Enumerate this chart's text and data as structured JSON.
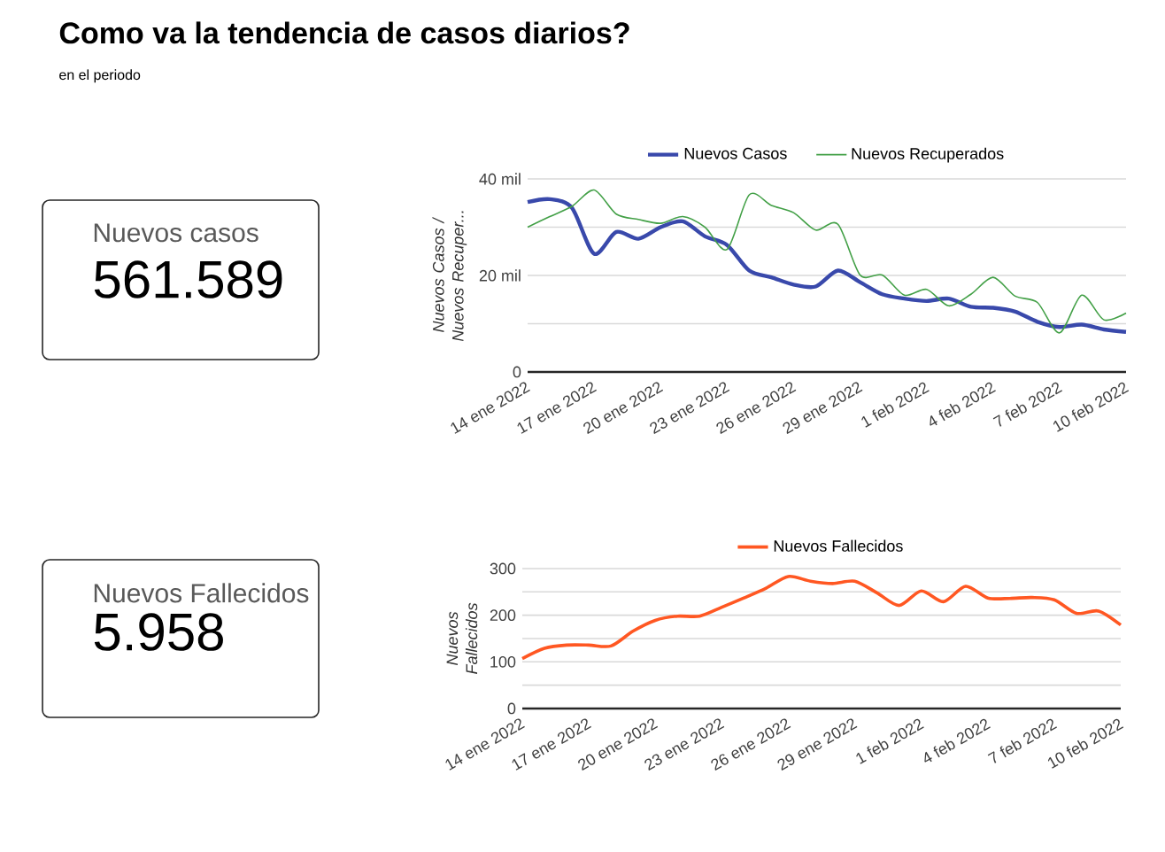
{
  "chart_data": [
    {
      "type": "other",
      "title": "Como va la tendencia de casos diarios?",
      "subtitle": "en el periodo"
    },
    {
      "type": "other",
      "title": "Nuevos casos",
      "annotations": [
        "561.589"
      ]
    },
    {
      "type": "line",
      "categories": [
        "14 ene 2022",
        null,
        null,
        "17 ene 2022",
        null,
        null,
        "20 ene 2022",
        null,
        null,
        "23 ene 2022",
        null,
        null,
        "26 ene 2022",
        null,
        null,
        "29 ene 2022",
        null,
        null,
        "1 feb 2022",
        null,
        null,
        "4 feb 2022",
        null,
        null,
        "7 feb 2022",
        null,
        null,
        "10 feb 2022"
      ],
      "series": [
        {
          "name": "Nuevos Casos",
          "color": "#3949ab",
          "values": [
            35.2,
            35.8,
            34.0,
            24.5,
            29.0,
            27.6,
            30.0,
            31.2,
            28.1,
            26.3,
            21.0,
            19.6,
            18.1,
            17.7,
            21.0,
            18.6,
            16.1,
            15.2,
            14.7,
            15.2,
            13.5,
            13.3,
            12.5,
            10.4,
            9.3,
            9.8,
            8.8,
            8.3
          ]
        },
        {
          "name": "Nuevos Recuperados",
          "color": "#43a047",
          "values": [
            30.0,
            32.2,
            34.3,
            37.7,
            32.7,
            31.6,
            30.8,
            32.2,
            30.0,
            25.4,
            36.7,
            34.5,
            33.0,
            29.4,
            30.6,
            20.1,
            20.1,
            15.9,
            17.1,
            13.7,
            16.1,
            19.6,
            15.7,
            14.4,
            8.1,
            15.9,
            10.8,
            12.2
          ]
        }
      ],
      "ylabel": "Nuevos Casos / Nuevos Recuper...",
      "ylim": [
        0,
        40
      ],
      "yticks": [
        0,
        {
          "value": 10,
          "label": null
        },
        {
          "value": 20,
          "label": "20 mil"
        },
        {
          "value": 30,
          "label": null
        },
        {
          "value": 40,
          "label": "40 mil"
        }
      ],
      "grid": "y",
      "legend": "top",
      "marker": "none",
      "line_style": "solid"
    },
    {
      "type": "other",
      "title": "Nuevos Fallecidos",
      "annotations": [
        "5.958"
      ]
    },
    {
      "type": "line",
      "categories": [
        "14 ene 2022",
        null,
        null,
        "17 ene 2022",
        null,
        null,
        "20 ene 2022",
        null,
        null,
        "23 ene 2022",
        null,
        null,
        "26 ene 2022",
        null,
        null,
        "29 ene 2022",
        null,
        null,
        "1 feb 2022",
        null,
        null,
        "4 feb 2022",
        null,
        null,
        "7 feb 2022",
        null,
        null,
        "10 feb 2022"
      ],
      "series": [
        {
          "name": "Nuevos Fallecidos",
          "color": "#ff5722",
          "values": [
            107,
            129,
            136,
            136,
            134,
            166,
            189,
            198,
            198,
            217,
            237,
            258,
            283,
            273,
            268,
            273,
            248,
            221,
            252,
            229,
            262,
            237,
            236,
            238,
            233,
            204,
            209,
            179
          ]
        }
      ],
      "ylabel": "Nuevos Fallecidos",
      "ylim": [
        0,
        300
      ],
      "yticks": [
        0,
        {
          "value": 50,
          "label": null
        },
        100,
        {
          "value": 150,
          "label": null
        },
        200,
        {
          "value": 250,
          "label": null
        },
        300
      ],
      "grid": "y",
      "legend": "top",
      "marker": "none",
      "line_style": "solid"
    }
  ]
}
